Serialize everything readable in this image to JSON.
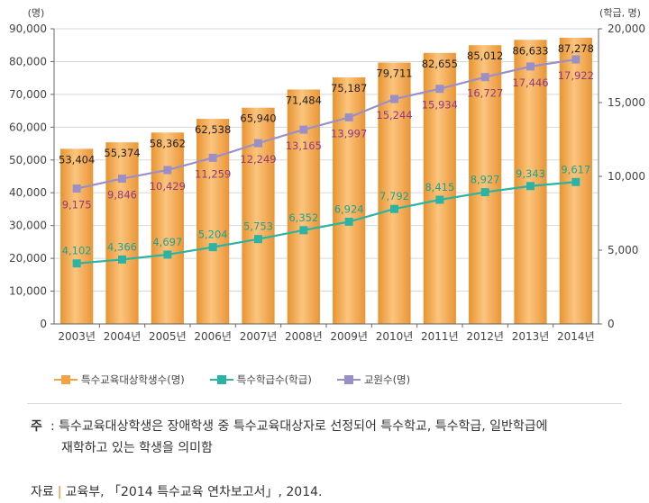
{
  "chart_data": {
    "type": "bar+line",
    "categories": [
      "2003년",
      "2004년",
      "2005년",
      "2006년",
      "2007년",
      "2008년",
      "2009년",
      "2010년",
      "2011년",
      "2012년",
      "2013년",
      "2014년"
    ],
    "left_axis": {
      "unit_label": "(명)",
      "ylim": [
        0,
        90000
      ],
      "ticks": [
        "0",
        "10,000",
        "20,000",
        "30,000",
        "40,000",
        "50,000",
        "60,000",
        "70,000",
        "80,000",
        "90,000"
      ]
    },
    "right_axis": {
      "unit_label": "(학급, 명)",
      "ylim": [
        0,
        20000
      ],
      "ticks": [
        "0",
        "5,000",
        "10,000",
        "15,000",
        "20,000"
      ]
    },
    "series": [
      {
        "name": "특수교육대상학생수(명)",
        "kind": "bar",
        "axis": "left",
        "color": "#f0a347",
        "values": [
          53404,
          55374,
          58362,
          62538,
          65940,
          71484,
          75187,
          79711,
          82655,
          85012,
          86633,
          87278
        ],
        "labels": [
          "53,404",
          "55,374",
          "58,362",
          "62,538",
          "65,940",
          "71,484",
          "75,187",
          "79,711",
          "82,655",
          "85,012",
          "86,633",
          "87,278"
        ]
      },
      {
        "name": "특수학급수(학급)",
        "kind": "line",
        "axis": "right",
        "color": "#2bb3a3",
        "values": [
          4102,
          4366,
          4697,
          5204,
          5753,
          6352,
          6924,
          7792,
          8415,
          8927,
          9343,
          9617
        ],
        "labels": [
          "4,102",
          "4,366",
          "4,697",
          "5,204",
          "5,753",
          "6,352",
          "6,924",
          "7,792",
          "8,415",
          "8,927",
          "9,343",
          "9,617"
        ]
      },
      {
        "name": "교원수(명)",
        "kind": "line",
        "axis": "right",
        "color": "#9b8fc7",
        "values": [
          9175,
          9846,
          10429,
          11259,
          12249,
          13165,
          13997,
          15244,
          15934,
          16727,
          17446,
          17922
        ],
        "labels": [
          "9,175",
          "9,846",
          "10,429",
          "11,259",
          "12,249",
          "13,165",
          "13,997",
          "15,244",
          "15,934",
          "16,727",
          "17,446",
          "17,922"
        ]
      }
    ],
    "label_colors": {
      "bar": "#222222",
      "line1": "#1aa391",
      "line2": "#8e3a86"
    }
  },
  "note": {
    "label": "주",
    "line1": ": 특수교육대상학생은 장애학생 중 특수교육대상자로 선정되어 특수학교, 특수학급, 일반학급에",
    "line2": "재학하고 있는 학생을 의미함"
  },
  "source": {
    "label": "자료",
    "text": "교육부, 「2014 특수교육 연차보고서」, 2014."
  }
}
